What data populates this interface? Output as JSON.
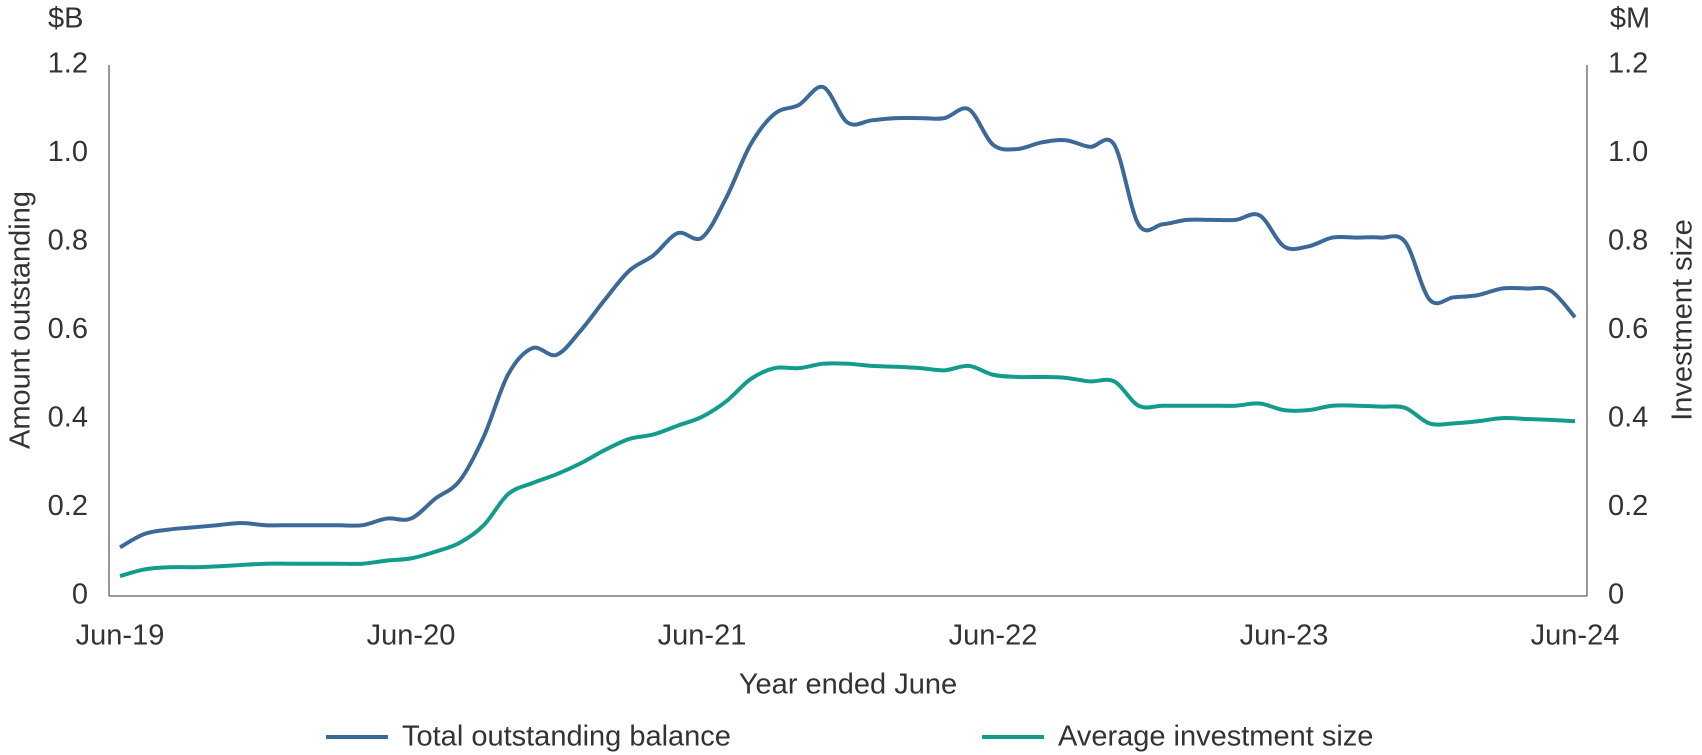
{
  "chart_data": {
    "type": "line",
    "y_unit": "$B",
    "y2_unit": "$M",
    "y_label": "Amount outstanding",
    "y2_label": "Investment size",
    "x_label": "Year ended June",
    "categories": [
      "Jun-19",
      null,
      null,
      null,
      null,
      null,
      null,
      null,
      null,
      null,
      null,
      null,
      "Jun-20",
      null,
      null,
      null,
      null,
      null,
      null,
      null,
      null,
      null,
      null,
      null,
      "Jun-21",
      null,
      null,
      null,
      null,
      null,
      null,
      null,
      null,
      null,
      null,
      null,
      "Jun-22",
      null,
      null,
      null,
      null,
      null,
      null,
      null,
      null,
      null,
      null,
      null,
      "Jun-23",
      null,
      null,
      null,
      null,
      null,
      null,
      null,
      null,
      null,
      null,
      null,
      "Jun-24"
    ],
    "series": [
      {
        "name": "Total outstanding balance",
        "color": "#3c6a98",
        "axis": "y",
        "values": [
          0.11,
          0.14,
          0.15,
          0.155,
          0.16,
          0.165,
          0.16,
          0.16,
          0.16,
          0.16,
          0.16,
          0.175,
          0.175,
          0.22,
          0.26,
          0.36,
          0.5,
          0.56,
          0.545,
          0.6,
          0.67,
          0.735,
          0.77,
          0.82,
          0.81,
          0.9,
          1.02,
          1.09,
          1.11,
          1.15,
          1.07,
          1.075,
          1.08,
          1.08,
          1.08,
          1.1,
          1.02,
          1.01,
          1.025,
          1.03,
          1.015,
          1.02,
          0.84,
          0.84,
          0.85,
          0.85,
          0.85,
          0.86,
          0.79,
          0.79,
          0.81,
          0.81,
          0.81,
          0.8,
          0.67,
          0.675,
          0.68,
          0.695,
          0.695,
          0.69,
          0.63
        ]
      },
      {
        "name": "Average investment size",
        "color": "#139c8c",
        "axis": "y2",
        "values": [
          0.045,
          0.06,
          0.065,
          0.065,
          0.067,
          0.07,
          0.073,
          0.073,
          0.073,
          0.073,
          0.073,
          0.08,
          0.085,
          0.1,
          0.12,
          0.16,
          0.23,
          0.255,
          0.275,
          0.3,
          0.33,
          0.355,
          0.365,
          0.385,
          0.405,
          0.44,
          0.49,
          0.515,
          0.515,
          0.525,
          0.525,
          0.52,
          0.518,
          0.515,
          0.51,
          0.52,
          0.5,
          0.495,
          0.495,
          0.493,
          0.485,
          0.485,
          0.43,
          0.43,
          0.43,
          0.43,
          0.43,
          0.435,
          0.42,
          0.42,
          0.43,
          0.43,
          0.428,
          0.425,
          0.39,
          0.39,
          0.395,
          0.402,
          0.4,
          0.398,
          0.395
        ]
      }
    ],
    "ylim": [
      0,
      1.2
    ],
    "yticks": [
      0,
      0.2,
      0.4,
      0.6,
      0.8,
      {
        "value": 1,
        "label": "1.0"
      },
      1.2
    ],
    "y2lim": [
      0,
      1.2
    ],
    "y2ticks": [
      0,
      0.2,
      0.4,
      0.6,
      0.8,
      {
        "value": 1,
        "label": "1.0"
      },
      1.2
    ],
    "grid": false,
    "legend": "bottom"
  }
}
